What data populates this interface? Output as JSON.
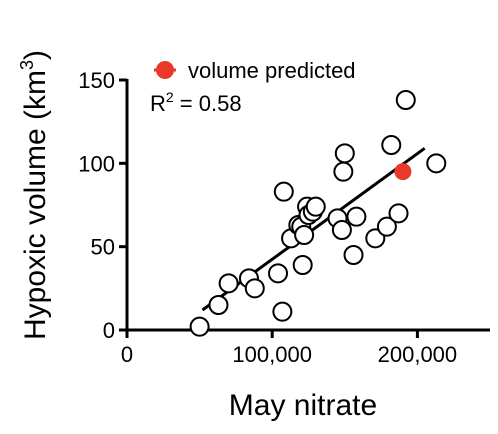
{
  "chart_data": {
    "type": "scatter",
    "xlabel": "May nitrate",
    "ylabel": "Hypoxic volume (km",
    "ylabel_superscript": "3",
    "ylabel_suffix": ")",
    "xlim": [
      0,
      250000
    ],
    "ylim": [
      0,
      150
    ],
    "x_ticks": [
      0,
      100000,
      200000
    ],
    "x_tick_labels": [
      "0",
      "100,000",
      "200,000"
    ],
    "y_ticks": [
      0,
      50,
      100,
      150
    ],
    "y_tick_labels": [
      "0",
      "50",
      "100",
      "150"
    ],
    "grid": false,
    "annotation": {
      "r2_prefix": "R",
      "r2_superscript": "2",
      "r2_value": " = 0.58"
    },
    "legend": {
      "placement": "top-left",
      "label": "volume predicted"
    },
    "colors": {
      "predicted": "#e8392a",
      "observed_stroke": "#000000",
      "observed_fill": "#ffffff",
      "fit_line": "#000000"
    },
    "series": [
      {
        "kind": "observed",
        "x": [
          50000,
          63000,
          70000,
          84000,
          88000,
          104000,
          107000,
          108000,
          113000,
          118000,
          120000,
          121000,
          122000,
          124000,
          125000,
          128000,
          130000,
          145000,
          148000,
          149000,
          150000,
          156000,
          158000,
          171000,
          179000,
          182000,
          187000,
          192000,
          213000
        ],
        "y": [
          2,
          15,
          28,
          31,
          25,
          34,
          11,
          83,
          55,
          63,
          62,
          39,
          57,
          74,
          69,
          71,
          74,
          67,
          60,
          95,
          106,
          45,
          68,
          55,
          62,
          111,
          70,
          138,
          100
        ]
      },
      {
        "kind": "predicted",
        "name": "volume predicted",
        "x": [
          190000
        ],
        "y": [
          95
        ]
      }
    ],
    "fit_line": {
      "x": [
        52000,
        205000
      ],
      "y": [
        12,
        109
      ]
    }
  }
}
